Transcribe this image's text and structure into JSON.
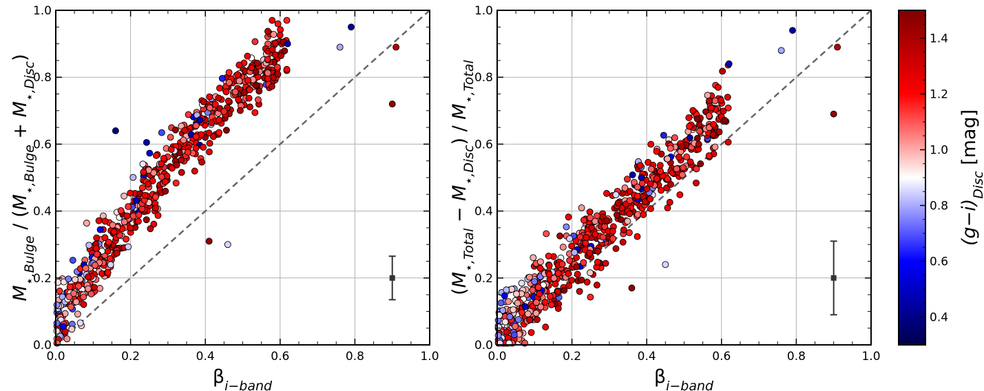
{
  "chart_data": [
    {
      "type": "scatter",
      "panel": "left",
      "xlabel": "β_{i−band}",
      "ylabel": "M_{⋆,Bulge} / (M_{⋆,Bulge} + M_{⋆,Disc})",
      "xlim": [
        0.0,
        1.0
      ],
      "ylim": [
        0.0,
        1.0
      ],
      "xticks": [
        "0.0",
        "0.2",
        "0.4",
        "0.6",
        "0.8",
        "1.0"
      ],
      "yticks": [
        "0.0",
        "0.2",
        "0.4",
        "0.6",
        "0.8",
        "1.0"
      ],
      "grid": true,
      "reference_line": {
        "style": "dashed",
        "from": [
          0,
          0
        ],
        "to": [
          1,
          1
        ]
      },
      "error_bar": {
        "x": 0.9,
        "y": 0.2,
        "ylow": 0.135,
        "yhigh": 0.265
      },
      "notable_points": [
        {
          "x": 0.79,
          "y": 0.95,
          "color_value": 0.45
        },
        {
          "x": 0.91,
          "y": 0.89,
          "color_value": 1.35
        },
        {
          "x": 0.9,
          "y": 0.72,
          "color_value": 1.45
        },
        {
          "x": 0.16,
          "y": 0.64,
          "color_value": 0.4
        },
        {
          "x": 0.41,
          "y": 0.31,
          "color_value": 1.45
        },
        {
          "x": 0.46,
          "y": 0.3,
          "color_value": 0.85
        },
        {
          "x": 0.62,
          "y": 0.9,
          "color_value": 0.5
        },
        {
          "x": 0.76,
          "y": 0.89,
          "color_value": 0.8
        }
      ]
    },
    {
      "type": "scatter",
      "panel": "right",
      "xlabel": "β_{i−band}",
      "ylabel": "(M_{⋆,Total} − M_{⋆,Disc}) / M_{⋆,Total}",
      "xlim": [
        0.0,
        1.0
      ],
      "ylim": [
        0.0,
        1.0
      ],
      "xticks": [
        "0.0",
        "0.2",
        "0.4",
        "0.6",
        "0.8",
        "1.0"
      ],
      "yticks": [
        "0.0",
        "0.2",
        "0.4",
        "0.6",
        "0.8",
        "1.0"
      ],
      "grid": true,
      "reference_line": {
        "style": "dashed",
        "from": [
          0,
          0
        ],
        "to": [
          1,
          1
        ]
      },
      "error_bar": {
        "x": 0.9,
        "y": 0.2,
        "ylow": 0.09,
        "yhigh": 0.31
      },
      "notable_points": [
        {
          "x": 0.79,
          "y": 0.94,
          "color_value": 0.45
        },
        {
          "x": 0.91,
          "y": 0.89,
          "color_value": 1.35
        },
        {
          "x": 0.9,
          "y": 0.69,
          "color_value": 1.45
        },
        {
          "x": 0.62,
          "y": 0.84,
          "color_value": 0.5
        },
        {
          "x": 0.76,
          "y": 0.88,
          "color_value": 0.8
        },
        {
          "x": 0.45,
          "y": 0.24,
          "color_value": 0.85
        },
        {
          "x": 0.36,
          "y": 0.17,
          "color_value": 1.45
        }
      ]
    }
  ],
  "colorbar": {
    "label": "(g−i)_{Disc} [mag]",
    "range": [
      0.3,
      1.5
    ],
    "ticks": [
      "0.4",
      "0.6",
      "0.8",
      "1.0",
      "1.2",
      "1.4"
    ],
    "colormap": "seismic",
    "stops": [
      "#00004c",
      "#0000ff",
      "#ffffff",
      "#ff0000",
      "#7f0000"
    ]
  },
  "colors": {
    "reference_line": "#666666",
    "grid": "#b0b0b0",
    "marker_edge": "#000000",
    "error_bar": "#333333"
  }
}
